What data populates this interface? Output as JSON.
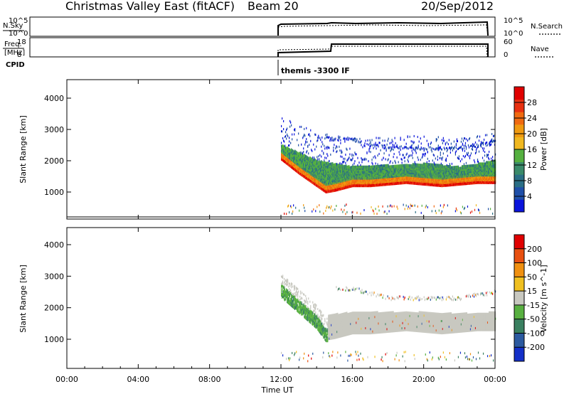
{
  "header": {
    "title": "Christmas Valley East (fitACF)",
    "beam": "Beam 20",
    "date": "20/Sep/2012"
  },
  "top_panels": {
    "nsky_label": "N.Sky",
    "nsky_ticks_left": [
      "10^5",
      "10^0"
    ],
    "nsky_ticks_right": [
      "10^5",
      "10^0"
    ],
    "nsearch_label": "N.Search",
    "freq_label_1": "Freq.",
    "freq_label_2": "[MHz]",
    "freq_ticks": [
      "18",
      "8"
    ],
    "nave_ticks": [
      "60",
      "0"
    ],
    "nave_label": "Nave",
    "cpid_label": "CPID",
    "cpid_text": "themis -3300 IF"
  },
  "power_panel": {
    "ylabel": "Slant Range [km]",
    "yticks": [
      "4000",
      "3000",
      "2000",
      "1000"
    ],
    "colorbar_label": "Power [dB]",
    "colorbar_ticks": [
      "28",
      "24",
      "20",
      "16",
      "12",
      "8",
      "4"
    ],
    "colorbar_colors": [
      "#0a14dc",
      "#1f4fa8",
      "#2a6e85",
      "#3a8a6a",
      "#55b040",
      "#f0b820",
      "#f09a10",
      "#f06a10",
      "#e83010",
      "#e00000"
    ]
  },
  "velocity_panel": {
    "ylabel": "Slant Range [km]",
    "yticks": [
      "4000",
      "3000",
      "2000",
      "1000"
    ],
    "colorbar_label": "Velocity [m s^-1]",
    "colorbar_ticks": [
      "200",
      "100",
      "50",
      "15",
      "-15",
      "-50",
      "-100",
      "-200"
    ],
    "colorbar_colors": [
      "#1430c8",
      "#2c5aa0",
      "#3a8060",
      "#58b040",
      "#c8c8c0",
      "#f0c020",
      "#f09010",
      "#e85010",
      "#e00000"
    ]
  },
  "xaxis": {
    "label": "Time UT",
    "ticks": [
      "00:00",
      "04:00",
      "08:00",
      "12:00",
      "16:00",
      "20:00",
      "00:00"
    ]
  },
  "chart_data": {
    "type": "heatmap",
    "title": "Christmas Valley East (fitACF)",
    "xlabel": "Time UT",
    "ylabel": "Slant Range [km]",
    "xlim_hours": [
      0,
      24
    ],
    "ylim_km": [
      180,
      4500
    ],
    "data_start_hour": 12.0,
    "power_panel": {
      "colorbar": "Power [dB]",
      "bands": [
        {
          "name": "main echo lower edge",
          "hours": [
            12.0,
            13.0,
            14.0,
            14.5,
            15.0,
            16.0,
            17.0,
            18.0,
            19.0,
            20.0,
            21.0,
            22.0,
            23.0,
            24.0
          ],
          "range_km": [
            2050,
            1600,
            1200,
            1000,
            1050,
            1200,
            1200,
            1250,
            1300,
            1250,
            1200,
            1250,
            1300,
            1300
          ],
          "power_db": 24
        },
        {
          "name": "green/blue layer",
          "hours": [
            12.0,
            14.0,
            16.0,
            18.0,
            20.0,
            22.0,
            24.0
          ],
          "range_km": [
            2300,
            1800,
            1600,
            1650,
            1700,
            1600,
            1800
          ],
          "power_db": 12
        },
        {
          "name": "upper scatter",
          "hours": [
            14.0,
            16.0,
            18.0,
            20.0,
            22.0,
            24.0
          ],
          "range_km": [
            2700,
            2700,
            2400,
            2400,
            2400,
            2600
          ],
          "power_db": 4
        }
      ]
    },
    "velocity_panel": {
      "colorbar": "Velocity [m s^-1]",
      "bands": [
        {
          "name": "green streak",
          "hours": [
            12.0,
            13.0,
            14.0,
            14.5
          ],
          "range_km": [
            2500,
            2000,
            1500,
            1100
          ],
          "velocity_ms": 50
        },
        {
          "name": "near-zero bulk",
          "hours": [
            14.5,
            16.0,
            18.0,
            20.0,
            22.0,
            24.0
          ],
          "range_km": [
            1400,
            1500,
            1500,
            1500,
            1450,
            1500
          ],
          "velocity_ms": 0
        }
      ]
    }
  }
}
